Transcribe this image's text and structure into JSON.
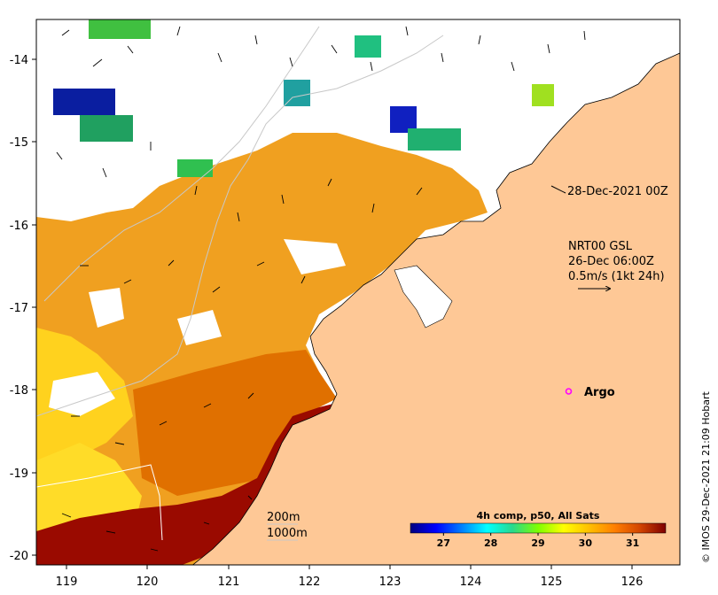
{
  "map": {
    "lon_range": [
      118.6,
      126.7
    ],
    "lat_range": [
      -20.1,
      -13.5
    ],
    "lon_ticks": [
      "119",
      "120",
      "121",
      "122",
      "123",
      "124",
      "125",
      "126"
    ],
    "lat_ticks": [
      "-14",
      "-15",
      "-16",
      "-17",
      "-18",
      "-19",
      "-20"
    ],
    "colors": {
      "land": "#fec896",
      "no_data": "#ffffff",
      "coast": "#000000",
      "isobath": "#c8c8c8"
    }
  },
  "annotations": {
    "analysis_time": "28-Dec-2021 00Z",
    "current_source": "NRT00 GSL",
    "current_time": "26-Dec 06:00Z",
    "arrow_scale": "0.5m/s (1kt 24h)"
  },
  "isobaths": {
    "shallow": "200m",
    "deep": "1000m"
  },
  "argo": {
    "label": "Argo",
    "lon": 125.3,
    "lat": -18.0,
    "color": "#ff00ff"
  },
  "colorbar": {
    "title": "4h comp, p50, All Sats",
    "ticks": [
      "27",
      "28",
      "29",
      "30",
      "31"
    ],
    "tick_values": [
      27,
      28,
      29,
      30,
      31
    ],
    "range": [
      26.3,
      31.7
    ],
    "stops": [
      "#00007f",
      "#0000ff",
      "#007fff",
      "#00ffff",
      "#29d98c",
      "#7fff00",
      "#ffff00",
      "#ffbf00",
      "#ff7f00",
      "#d24400",
      "#7f0000"
    ]
  },
  "credit": "© IMOS 29-Dec-2021 21:09 Hobart"
}
